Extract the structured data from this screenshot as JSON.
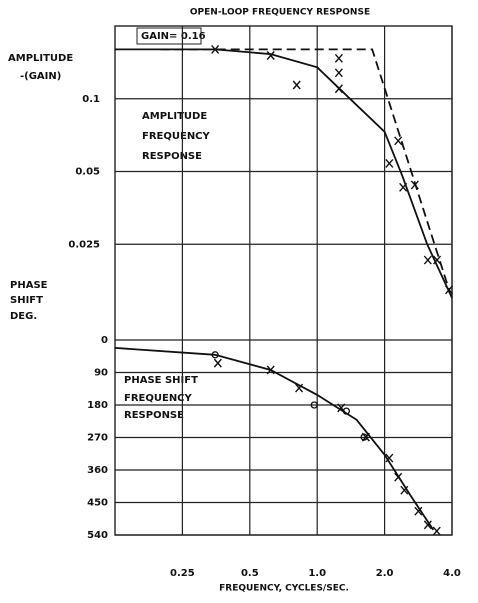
{
  "chart_data": [
    {
      "type": "line",
      "title": "OPEN-LOOP FREQUENCY RESPONSE",
      "ylabel": [
        "AMPLITUDE",
        "-(GAIN)"
      ],
      "gain_label": "GAIN= 0.16",
      "curve_label": [
        "AMPLITUDE",
        "FREQUENCY",
        "RESPONSE"
      ],
      "log_x": true,
      "log_y": true,
      "xlim": [
        0.125,
        4
      ],
      "xticks": [
        0.25,
        0.5,
        1,
        2,
        4
      ],
      "ylim": [
        0.0125,
        0.2
      ],
      "yticks": [
        0.1,
        0.05,
        0.025
      ],
      "grid": true,
      "color": "#111111",
      "series": [
        {
          "style": "solid",
          "x": [
            0.125,
            0.35,
            0.62,
            1.0,
            1.4,
            2.0,
            2.4,
            3.1,
            4.0
          ],
          "values": [
            0.16,
            0.16,
            0.153,
            0.135,
            0.1,
            0.073,
            0.048,
            0.025,
            0.015
          ]
        },
        {
          "style": "dashed",
          "x": [
            0.2,
            1.76,
            3.9
          ],
          "values": [
            0.16,
            0.16,
            0.016
          ]
        },
        {
          "style": "x",
          "x": [
            0.35,
            0.62,
            0.81,
            1.25,
            1.25,
            1.25,
            2.1,
            2.3,
            2.42,
            2.73,
            3.12,
            3.43,
            3.88
          ],
          "values": [
            0.16,
            0.151,
            0.114,
            0.147,
            0.128,
            0.11,
            0.054,
            0.067,
            0.043,
            0.044,
            0.0215,
            0.0215,
            0.0162
          ]
        }
      ]
    },
    {
      "type": "line",
      "ylabel": [
        "PHASE",
        "SHIFT",
        "DEG."
      ],
      "xlabel": "FREQUENCY, CYCLES/SEC.",
      "curve_label": [
        "PHASE SHIFT",
        "FREQUENCY",
        "RESPONSE"
      ],
      "log_x": true,
      "inverted_y": true,
      "xlim": [
        0.125,
        4
      ],
      "xticks": [
        0.25,
        0.5,
        {
          "value": 1,
          "label": "1.0"
        },
        {
          "value": 2,
          "label": "2.0"
        },
        {
          "value": 4,
          "label": "4.0"
        }
      ],
      "ylim": [
        0,
        540
      ],
      "yticks": [
        0,
        90,
        180,
        270,
        360,
        450,
        540
      ],
      "grid": true,
      "color": "#111111",
      "series": [
        {
          "style": "solid",
          "x": [
            0.125,
            0.35,
            0.62,
            1.0,
            1.5,
            2.0,
            2.6,
            3.3
          ],
          "values": [
            22,
            41,
            83,
            152,
            221,
            318,
            429,
            526
          ]
        },
        {
          "style": "x",
          "x": [
            0.36,
            0.62,
            0.83,
            1.28,
            1.65,
            2.1,
            2.3,
            2.45,
            2.83,
            3.12,
            3.42
          ],
          "values": [
            64,
            83,
            133,
            188,
            269,
            327,
            380,
            416,
            474,
            512,
            529
          ]
        },
        {
          "style": "o",
          "x": [
            0.35,
            0.97,
            1.35,
            1.62
          ],
          "values": [
            41,
            180,
            197,
            269
          ]
        }
      ]
    }
  ]
}
